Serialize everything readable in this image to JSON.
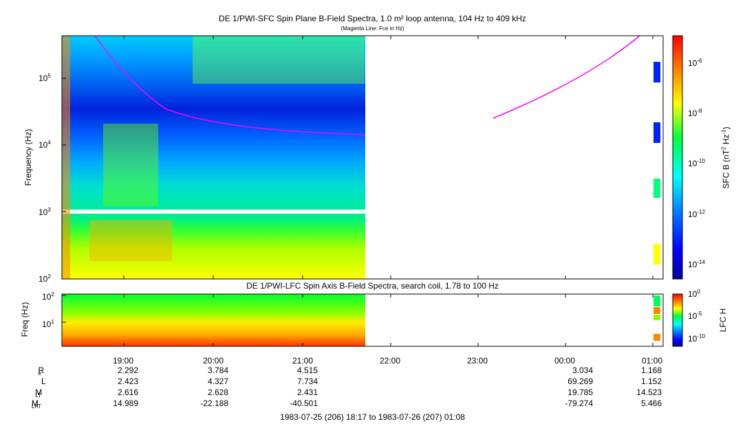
{
  "header": {
    "title": "DE 1/PWI-SFC  Spin Plane B-Field Spectra, 1.0 m² loop antenna, 104 Hz to 409 kHz",
    "subtitle": "(Magenta Line: Fce in Hz)"
  },
  "chart_data": [
    {
      "type": "heatmap",
      "title": "DE 1/PWI-SFC  Spin Plane B-Field Spectra, 1.0 m² loop antenna, 104 Hz to 409 kHz",
      "subtitle": "(Magenta Line: Fce in Hz)",
      "ylabel": "Frequency (Hz)",
      "yscale": "log",
      "ylim": [
        100,
        409000
      ],
      "y_ticks": [
        "10^2",
        "10^3",
        "10^4",
        "10^5"
      ],
      "x_ticks": [
        "19:00",
        "20:00",
        "21:00",
        "22:00",
        "23:00",
        "00:00",
        "01:00"
      ],
      "data_coverage": [
        "18:17",
        "21:48"
      ],
      "colorbar": {
        "label": "SFC B (nT² Hz⁻¹)",
        "scale": "log",
        "range": [
          "10^-15",
          "10^-5"
        ],
        "ticks": [
          "10^-6",
          "10^-8",
          "10^-10",
          "10^-12",
          "10^-14"
        ]
      },
      "series": [
        {
          "name": "Fce",
          "color": "#ff00ff",
          "segments": [
            {
              "x": [
                "18:30",
                "19:00",
                "19:30",
                "20:00",
                "20:30",
                "21:00",
                "21:30",
                "21:48"
              ],
              "y": [
                409000,
                100000,
                40000,
                25000,
                19000,
                16000,
                14000,
                14000
              ]
            },
            {
              "x": [
                "23:35",
                "00:00",
                "00:30",
                "00:55"
              ],
              "y": [
                24000,
                40000,
                100000,
                409000
              ]
            }
          ]
        }
      ]
    },
    {
      "type": "heatmap",
      "title": "DE 1/PWI-LFC  Spin Axis B-Field Spectra, search coil, 1.78 to 100 Hz",
      "ylabel": "Freq (Hz)",
      "yscale": "log",
      "ylim": [
        1.78,
        100
      ],
      "y_ticks": [
        "10^1",
        "10^2"
      ],
      "colorbar": {
        "label": "LFC H",
        "scale": "log",
        "ticks": [
          "10^0",
          "10^-5",
          "10^-10"
        ]
      }
    }
  ],
  "lower_panel": {
    "title": "DE 1/PWI-LFC  Spin Axis B-Field Spectra, search coil, 1.78 to 100 Hz"
  },
  "axes": {
    "upper_ylabel": "Frequency (Hz)",
    "upper_yticks": [
      "10",
      "10",
      "10",
      "10"
    ],
    "upper_yexp": [
      "2",
      "3",
      "4",
      "5"
    ],
    "lower_ylabel": "Freq (Hz)",
    "lower_yticks": [
      "10",
      "10"
    ],
    "lower_yexp": [
      "1",
      "2"
    ],
    "x_ticks": [
      "19:00",
      "20:00",
      "21:00",
      "22:00",
      "23:00",
      "00:00",
      "01:00"
    ]
  },
  "colorbars": {
    "upper_label": "SFC B (nT",
    "upper_label_sup1": "2",
    "upper_label_mid": " Hz",
    "upper_label_sup2": "-1",
    "upper_label_end": ")",
    "upper_ticks": [
      "10",
      "10",
      "10",
      "10",
      "10"
    ],
    "upper_exps": [
      "-6",
      "-8",
      "-10",
      "-12",
      "-14"
    ],
    "lower_label": "LFC H",
    "lower_ticks": [
      "10",
      "10",
      "10"
    ],
    "lower_exps": [
      "0",
      "-5",
      "-10"
    ]
  },
  "ephemeris": {
    "labels": [
      {
        "main": "R",
        "sub": "e"
      },
      {
        "main": "L",
        "sub": ""
      },
      {
        "main": "M",
        "sub": "LT"
      },
      {
        "main": "M",
        "sub": "LAT"
      }
    ],
    "rows": [
      [
        "2.292",
        "3.784",
        "4.515",
        "3.034",
        "1.168"
      ],
      [
        "2.423",
        "4.327",
        "7.734",
        "69.269",
        "1.152"
      ],
      [
        "2.616",
        "2.628",
        "2.431",
        "19.785",
        "14.523"
      ],
      [
        "14.989",
        "-22.188",
        "-40.501",
        "-79.274",
        "5.466"
      ]
    ]
  },
  "footer": {
    "time_range": "1983-07-25 (206) 18:17 to 1983-07-26 (207) 01:08"
  }
}
